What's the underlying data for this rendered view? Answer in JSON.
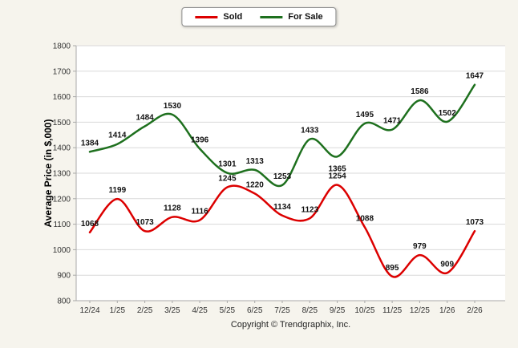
{
  "legend": {
    "sold_label": "Sold",
    "for_sale_label": "For Sale"
  },
  "y_axis_title": "Average Price (in $,000)",
  "footer": "Copyright © Trendgraphix, Inc.",
  "chart_data": {
    "type": "line",
    "title": "",
    "categories": [
      "12/24",
      "1/25",
      "2/25",
      "3/25",
      "4/25",
      "5/25",
      "6/25",
      "7/25",
      "8/25",
      "9/25",
      "10/25",
      "11/25",
      "12/25",
      "1/26",
      "2/26"
    ],
    "series": [
      {
        "name": "Sold",
        "color": "#dc0000",
        "values": [
          1068,
          1199,
          1073,
          1128,
          1116,
          1245,
          1220,
          1134,
          1123,
          1254,
          1088,
          895,
          979,
          909,
          1073
        ]
      },
      {
        "name": "For Sale",
        "color": "#1e701e",
        "values": [
          1384,
          1414,
          1484,
          1530,
          1396,
          1301,
          1313,
          1253,
          1433,
          1365,
          1495,
          1471,
          1586,
          1502,
          1647
        ]
      }
    ],
    "xlabel": "",
    "ylabel": "Average Price (in $,000)",
    "ylim": [
      800,
      1800
    ],
    "ytick_step": 100,
    "grid": true,
    "legend_position": "top-center",
    "background_color": "#f6f4ed",
    "plot_background_color": "#ffffff",
    "grid_color": "#d9d9d9",
    "axis_color": "#a8a8a8",
    "tick_label_color": "#333333",
    "data_label_color": "#111111"
  }
}
